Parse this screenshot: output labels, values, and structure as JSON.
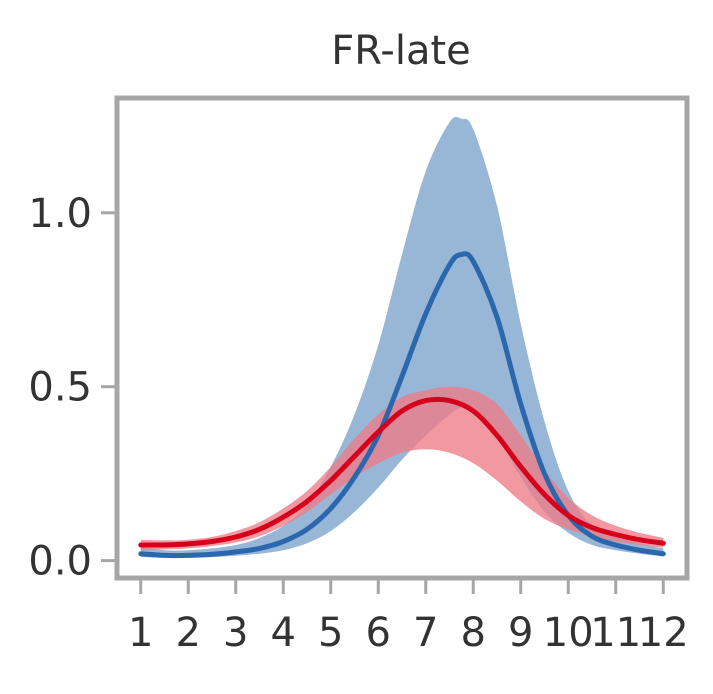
{
  "chart_data": {
    "type": "line",
    "title": "FR-late",
    "xlabel": "",
    "ylabel": "",
    "xlim": [
      0.5,
      12.5
    ],
    "ylim": [
      -0.05,
      1.33
    ],
    "grid": false,
    "legend": "none",
    "x_ticks": [
      "1",
      "2",
      "3",
      "4",
      "5",
      "6",
      "7",
      "8",
      "9",
      "10",
      "11",
      "12"
    ],
    "y_ticks": [
      "0.0",
      "0.5",
      "1.0"
    ],
    "x_tick_values": [
      1,
      2,
      3,
      4,
      5,
      6,
      7,
      8,
      9,
      10,
      11,
      12
    ],
    "y_tick_values": [
      0.0,
      0.5,
      1.0
    ],
    "series": [
      {
        "color": "#2b67ad",
        "band_color": "#92b2d4",
        "x": [
          1,
          1.5,
          2,
          2.5,
          3,
          3.5,
          4,
          4.5,
          5,
          5.5,
          6,
          6.5,
          7,
          7.5,
          7.75,
          8,
          8.5,
          9,
          9.5,
          10,
          10.5,
          11,
          11.5,
          12
        ],
        "y": [
          0.02,
          0.015,
          0.015,
          0.018,
          0.025,
          0.035,
          0.055,
          0.09,
          0.15,
          0.24,
          0.36,
          0.53,
          0.71,
          0.85,
          0.88,
          0.86,
          0.7,
          0.45,
          0.25,
          0.13,
          0.07,
          0.045,
          0.03,
          0.02
        ],
        "lower": [
          0.01,
          0.008,
          0.008,
          0.01,
          0.014,
          0.02,
          0.03,
          0.05,
          0.085,
          0.14,
          0.21,
          0.29,
          0.36,
          0.42,
          0.44,
          0.43,
          0.36,
          0.24,
          0.14,
          0.08,
          0.045,
          0.03,
          0.02,
          0.012
        ],
        "upper": [
          0.04,
          0.03,
          0.03,
          0.035,
          0.045,
          0.065,
          0.1,
          0.16,
          0.27,
          0.42,
          0.62,
          0.88,
          1.12,
          1.26,
          1.27,
          1.24,
          1.02,
          0.68,
          0.4,
          0.2,
          0.1,
          0.07,
          0.05,
          0.035
        ]
      },
      {
        "color": "#d6001c",
        "band_color": "#ee7b86",
        "x": [
          1,
          1.5,
          2,
          2.5,
          3,
          3.5,
          4,
          4.5,
          5,
          5.5,
          6,
          6.5,
          7,
          7.5,
          8,
          8.5,
          9,
          9.5,
          10,
          10.5,
          11,
          11.5,
          12
        ],
        "y": [
          0.045,
          0.045,
          0.048,
          0.055,
          0.068,
          0.09,
          0.125,
          0.17,
          0.23,
          0.3,
          0.37,
          0.43,
          0.46,
          0.46,
          0.43,
          0.36,
          0.27,
          0.19,
          0.13,
          0.095,
          0.075,
          0.06,
          0.05
        ],
        "lower": [
          0.03,
          0.032,
          0.035,
          0.042,
          0.052,
          0.07,
          0.1,
          0.14,
          0.19,
          0.24,
          0.28,
          0.31,
          0.32,
          0.31,
          0.28,
          0.23,
          0.17,
          0.12,
          0.09,
          0.07,
          0.055,
          0.045,
          0.037
        ],
        "upper": [
          0.06,
          0.058,
          0.06,
          0.068,
          0.085,
          0.11,
          0.15,
          0.2,
          0.27,
          0.35,
          0.42,
          0.47,
          0.49,
          0.5,
          0.49,
          0.45,
          0.36,
          0.26,
          0.18,
          0.13,
          0.1,
          0.08,
          0.065
        ]
      }
    ]
  }
}
